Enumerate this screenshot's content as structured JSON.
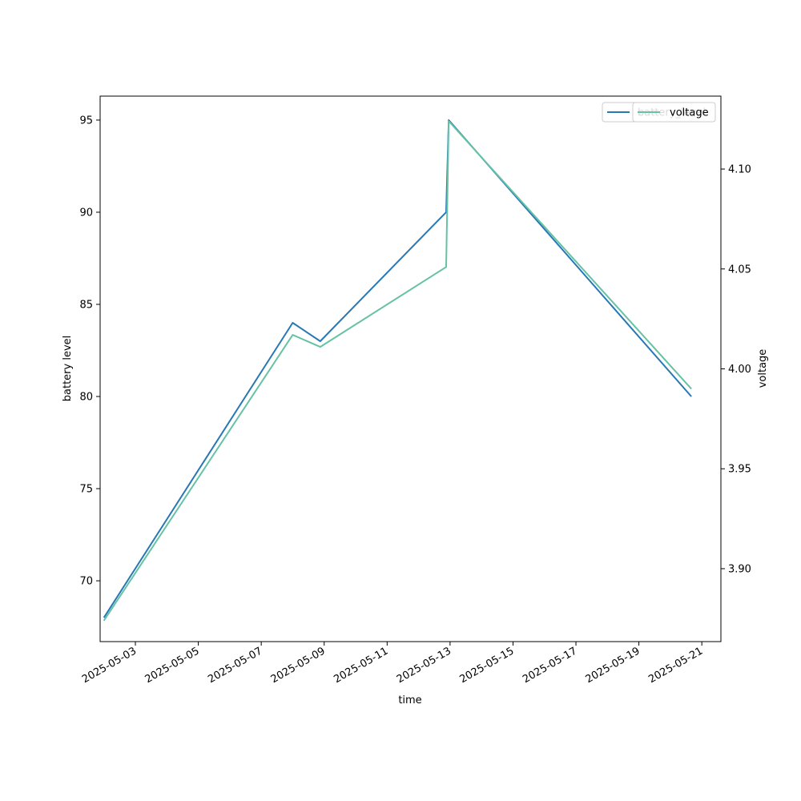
{
  "chart_data": {
    "type": "line",
    "xlabel": "time",
    "ylabel": "battery level",
    "y2label": "voltage",
    "x_ticks": [
      "2025-05-03",
      "2025-05-05",
      "2025-05-07",
      "2025-05-09",
      "2025-05-11",
      "2025-05-13",
      "2025-05-15",
      "2025-05-17",
      "2025-05-19",
      "2025-05-21"
    ],
    "xlim": [
      "2025-05-01T21:07",
      "2025-05-21T14:33"
    ],
    "ylim": [
      66.7,
      96.3
    ],
    "y_ticks": [
      70,
      75,
      80,
      85,
      90,
      95
    ],
    "y2lim": [
      3.8635,
      4.1365
    ],
    "y2_ticks": [
      "3.90",
      "3.95",
      "4.00",
      "4.05",
      "4.10"
    ],
    "grid": false,
    "legend_position": "top-right",
    "series": [
      {
        "name": "battery_level",
        "axis": "left",
        "color": "#2878b5",
        "x": [
          "2025-05-02T00:00",
          "2025-05-08T00:00",
          "2025-05-08T21:00",
          "2025-05-12T21:00",
          "2025-05-12T23:00",
          "2025-05-20T16:00"
        ],
        "values": [
          68,
          84,
          83,
          90,
          95,
          80
        ]
      },
      {
        "name": "voltage",
        "axis": "right",
        "color": "#66c2a5",
        "x": [
          "2025-05-02T00:00",
          "2025-05-08T00:00",
          "2025-05-08T21:00",
          "2025-05-12T21:00",
          "2025-05-12T23:00",
          "2025-05-20T16:00"
        ],
        "values": [
          3.874,
          4.017,
          4.011,
          4.051,
          4.124,
          3.99
        ]
      }
    ]
  }
}
